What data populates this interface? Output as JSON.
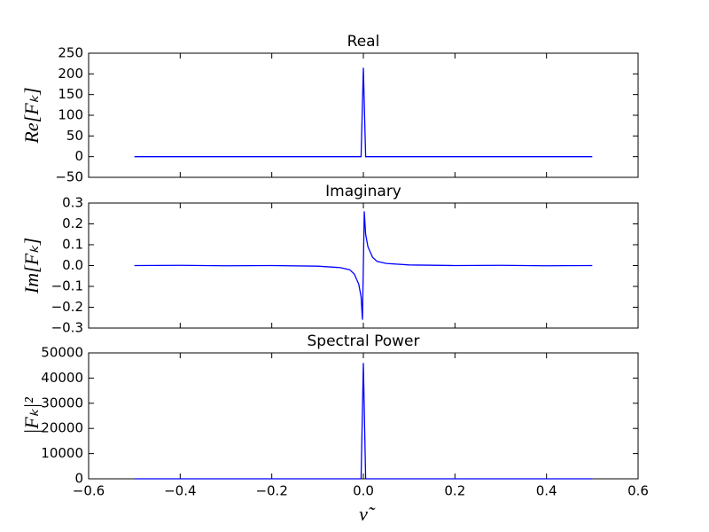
{
  "chart_data": [
    {
      "type": "line",
      "title": "Real",
      "ylabel": "Re[Fₖ]",
      "color": "#0000ff",
      "x": [
        -0.5,
        -0.1,
        -0.005,
        0,
        0.005,
        0.1,
        0.5
      ],
      "values": [
        0,
        0,
        0,
        215,
        0,
        0,
        0
      ],
      "xlim": [
        -0.6,
        0.6
      ],
      "ylim": [
        -50,
        250
      ],
      "yticks": [
        {
          "value": -50,
          "label": "−50"
        },
        0,
        50,
        100,
        150,
        200,
        250
      ]
    },
    {
      "type": "line",
      "title": "Imaginary",
      "ylabel": "Im[Fₖ]",
      "color": "#0000ff",
      "x": [
        -0.5,
        -0.4,
        -0.3,
        -0.2,
        -0.1,
        -0.05,
        -0.03,
        -0.02,
        -0.01,
        -0.005,
        -0.002,
        0.002,
        0.005,
        0.01,
        0.02,
        0.03,
        0.05,
        0.1,
        0.2,
        0.3,
        0.4,
        0.5
      ],
      "values": [
        0,
        0.001,
        -0.001,
        0,
        -0.003,
        -0.01,
        -0.02,
        -0.04,
        -0.09,
        -0.15,
        -0.26,
        0.26,
        0.15,
        0.09,
        0.04,
        0.02,
        0.01,
        0.003,
        0,
        0.001,
        -0.001,
        0
      ],
      "xlim": [
        -0.6,
        0.6
      ],
      "ylim": [
        -0.3,
        0.3
      ],
      "yticks": [
        {
          "value": -0.3,
          "label": "−0.3"
        },
        {
          "value": -0.2,
          "label": "−0.2"
        },
        {
          "value": -0.1,
          "label": "−0.1"
        },
        {
          "value": 0,
          "label": "0.0"
        },
        0.1,
        0.2,
        0.3
      ]
    },
    {
      "type": "line",
      "title": "Spectral Power",
      "ylabel": "|Fₖ|²",
      "xlabel": "ν̃",
      "color": "#0000ff",
      "x": [
        -0.5,
        -0.1,
        -0.005,
        0,
        0.005,
        0.1,
        0.5
      ],
      "values": [
        0,
        0,
        0,
        46000,
        0,
        0,
        0
      ],
      "xlim": [
        -0.6,
        0.6
      ],
      "ylim": [
        0,
        50000
      ],
      "yticks": [
        0,
        10000,
        20000,
        30000,
        40000,
        50000
      ],
      "xticks": [
        {
          "value": -0.6,
          "label": "−0.6"
        },
        {
          "value": -0.4,
          "label": "−0.4"
        },
        {
          "value": -0.2,
          "label": "−0.2"
        },
        {
          "value": 0,
          "label": "0.0"
        },
        0.2,
        0.4,
        0.6
      ]
    }
  ]
}
